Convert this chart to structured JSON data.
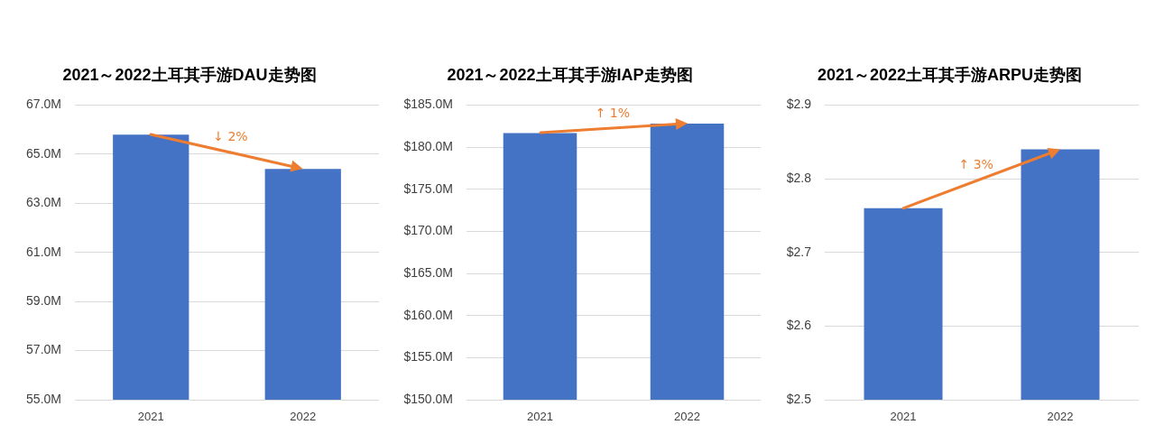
{
  "chart_data": [
    {
      "type": "bar",
      "title": "2021～2022土耳其手游DAU走势图",
      "categories": [
        "2021",
        "2022"
      ],
      "values": [
        65.8,
        64.4
      ],
      "color": "#4472c4",
      "ylim": [
        55,
        67
      ],
      "yticks": [
        {
          "value": 55,
          "label": "55.0M"
        },
        {
          "value": 57,
          "label": "57.0M"
        },
        {
          "value": 59,
          "label": "59.0M"
        },
        {
          "value": 61,
          "label": "61.0M"
        },
        {
          "value": 63,
          "label": "63.0M"
        },
        {
          "value": 65,
          "label": "65.0M"
        },
        {
          "value": 67,
          "label": "67.0M"
        }
      ],
      "grid": "y",
      "annotations": [
        "↓ 2%"
      ]
    },
    {
      "type": "bar",
      "title": "2021～2022土耳其手游IAP走势图",
      "categories": [
        "2021",
        "2022"
      ],
      "values": [
        181.7,
        182.8
      ],
      "color": "#4472c4",
      "ylim": [
        150,
        185
      ],
      "yticks": [
        {
          "value": 150,
          "label": "$150.0M"
        },
        {
          "value": 155,
          "label": "$155.0M"
        },
        {
          "value": 160,
          "label": "$160.0M"
        },
        {
          "value": 165,
          "label": "$165.0M"
        },
        {
          "value": 170,
          "label": "$170.0M"
        },
        {
          "value": 175,
          "label": "$175.0M"
        },
        {
          "value": 180,
          "label": "$180.0M"
        },
        {
          "value": 185,
          "label": "$185.0M"
        }
      ],
      "grid": "y",
      "annotations": [
        "↑ 1%"
      ]
    },
    {
      "type": "bar",
      "title": "2021～2022土耳其手游ARPU走势图",
      "categories": [
        "2021",
        "2022"
      ],
      "values": [
        2.76,
        2.84
      ],
      "color": "#4472c4",
      "ylim": [
        2.5,
        2.9
      ],
      "yticks": [
        {
          "value": 2.5,
          "label": "$2.5"
        },
        {
          "value": 2.6,
          "label": "$2.6"
        },
        {
          "value": 2.7,
          "label": "$2.7"
        },
        {
          "value": 2.8,
          "label": "$2.8"
        },
        {
          "value": 2.9,
          "label": "$2.9"
        }
      ],
      "grid": "y",
      "annotations": [
        "↑ 3%"
      ]
    }
  ]
}
